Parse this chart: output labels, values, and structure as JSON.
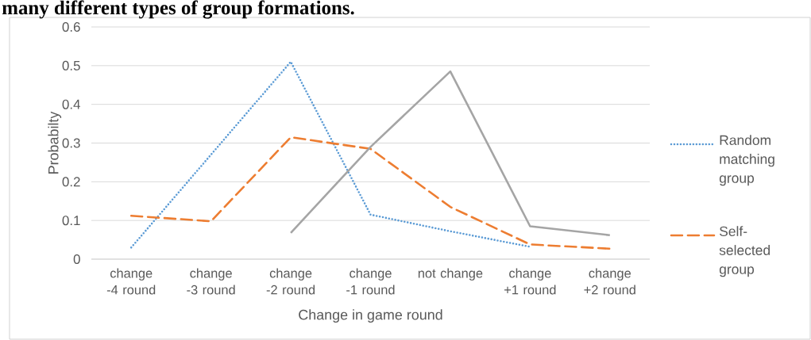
{
  "chart_data": {
    "type": "line",
    "title": "many different types of group formations.",
    "xlabel": "Change in game round",
    "ylabel": "Probabilty",
    "categories": [
      "change -4 round",
      "change -3 round",
      "change -2 round",
      "change -1 round",
      "not change",
      "change +1 round",
      "change +2 round"
    ],
    "series": [
      {
        "name": "Random matching group",
        "color": "#5b9bd5",
        "line_style": "dotted",
        "values": [
          0.03,
          0.27,
          0.51,
          0.115,
          0.072,
          0.032,
          null
        ]
      },
      {
        "name": "Self-selected group",
        "color": "#ed7d31",
        "line_style": "dashed",
        "values": [
          0.112,
          0.098,
          0.315,
          0.285,
          0.135,
          0.038,
          0.027
        ]
      },
      {
        "color": "#a5a5a5",
        "line_style": "solid",
        "values": [
          null,
          null,
          0.068,
          0.29,
          0.485,
          0.085,
          0.062
        ]
      }
    ],
    "ylim": [
      0,
      0.6
    ],
    "yticks": [
      0,
      0.1,
      0.2,
      0.3,
      0.4,
      0.5,
      0.6
    ],
    "grid": "y",
    "legend": "right",
    "marker": "none"
  }
}
